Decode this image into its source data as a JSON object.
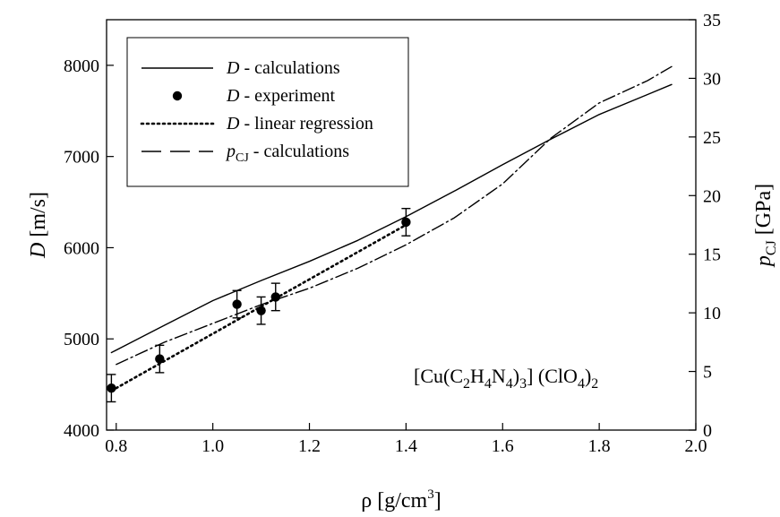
{
  "chart_data": {
    "type": "line",
    "xlabel": {
      "main": "ρ [g/cm",
      "sup": "3",
      "tail": "]"
    },
    "ylabel_left": {
      "var": "D",
      "unit": "[m/s]"
    },
    "ylabel_right": {
      "var": "p",
      "sub": "CJ",
      "unit": "[GPa]"
    },
    "xlim": [
      0.78,
      2.0
    ],
    "ylim_left": [
      4000,
      8500
    ],
    "ylim_right": [
      0,
      35
    ],
    "x_ticks": [
      0.8,
      1.0,
      1.2,
      1.4,
      1.6,
      1.8,
      2.0
    ],
    "x_tick_labels": [
      "0.8",
      "1.0",
      "1.2",
      "1.4",
      "1.6",
      "1.8",
      "2.0"
    ],
    "y_left_ticks": [
      4000,
      5000,
      6000,
      7000,
      8000
    ],
    "y_left_tick_labels": [
      "4000",
      "5000",
      "6000",
      "7000",
      "8000"
    ],
    "y_right_ticks": [
      0,
      5,
      10,
      15,
      20,
      25,
      30,
      35
    ],
    "y_right_tick_labels": [
      "0",
      "5",
      "10",
      "15",
      "20",
      "25",
      "30",
      "35"
    ],
    "grid": false,
    "legend_position": "top-left",
    "annotation": {
      "parts": [
        {
          "t": "[Cu(C"
        },
        {
          "t": "2",
          "sub": true
        },
        {
          "t": "H"
        },
        {
          "t": "4",
          "sub": true
        },
        {
          "t": "N"
        },
        {
          "t": "4",
          "sub": true
        },
        {
          "t": ")"
        },
        {
          "t": "3",
          "sub": true
        },
        {
          "t": "] (ClO"
        },
        {
          "t": "4",
          "sub": true
        },
        {
          "t": ")"
        },
        {
          "t": "2",
          "sub": true
        }
      ]
    },
    "series": [
      {
        "name": "D - calculations",
        "legend": {
          "var": "D",
          "text": " - calculations"
        },
        "axis": "left",
        "style": "solid",
        "x": [
          0.79,
          0.9,
          1.0,
          1.1,
          1.2,
          1.3,
          1.4,
          1.5,
          1.6,
          1.7,
          1.8,
          1.9,
          1.95
        ],
        "y": [
          4850,
          5150,
          5420,
          5640,
          5850,
          6080,
          6340,
          6620,
          6910,
          7190,
          7460,
          7680,
          7790
        ]
      },
      {
        "name": "D - experiment",
        "legend": {
          "var": "D",
          "text": " - experiment"
        },
        "axis": "left",
        "style": "points",
        "x": [
          0.79,
          0.89,
          1.05,
          1.1,
          1.13,
          1.4
        ],
        "y": [
          4460,
          4780,
          5380,
          5310,
          5460,
          6280
        ],
        "err": 150
      },
      {
        "name": "D - linear regression",
        "legend": {
          "var": "D",
          "text": " - linear regression"
        },
        "axis": "left",
        "style": "dotted",
        "x": [
          0.79,
          1.4
        ],
        "y": [
          4430,
          6250
        ]
      },
      {
        "name": "pCJ - calculations",
        "legend": {
          "var": "p",
          "sub": "CJ",
          "text": " - calculations"
        },
        "axis": "right",
        "style": "dashdot",
        "x": [
          0.8,
          0.9,
          1.0,
          1.1,
          1.2,
          1.3,
          1.4,
          1.5,
          1.6,
          1.7,
          1.8,
          1.9,
          1.95
        ],
        "y": [
          5.6,
          7.5,
          9.1,
          10.7,
          12.1,
          13.8,
          15.8,
          18.1,
          21.0,
          24.9,
          27.9,
          29.8,
          31.0
        ]
      }
    ]
  }
}
